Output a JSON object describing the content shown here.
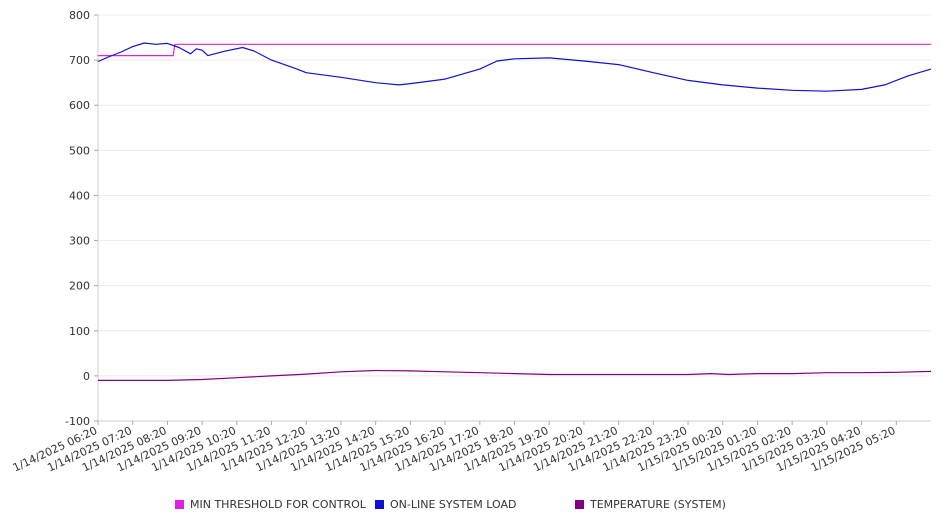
{
  "chart_data": {
    "type": "line",
    "title": "",
    "xlabel": "",
    "ylabel": "",
    "ylim": [
      -100,
      800
    ],
    "y_ticks": [
      "800",
      "700",
      "600",
      "500",
      "400",
      "300",
      "200",
      "100",
      "0",
      "-100"
    ],
    "x_start": "1/14/2025 06:20",
    "x_end": "1/15/2025 06:20",
    "x_ticks": [
      "1/14/2025 06:20",
      "1/14/2025 07:20",
      "1/14/2025 08:20",
      "1/14/2025 09:20",
      "1/14/2025 10:20",
      "1/14/2025 11:20",
      "1/14/2025 12:20",
      "1/14/2025 13:20",
      "1/14/2025 14:20",
      "1/14/2025 15:20",
      "1/14/2025 16:20",
      "1/14/2025 17:20",
      "1/14/2025 18:20",
      "1/14/2025 19:20",
      "1/14/2025 20:20",
      "1/14/2025 21:20",
      "1/14/2025 22:20",
      "1/14/2025 23:20",
      "1/15/2025 00:20",
      "1/15/2025 01:20",
      "1/15/2025 02:20",
      "1/15/2025 03:20",
      "1/15/2025 04:20",
      "1/15/2025 05:20"
    ],
    "grid": true,
    "legend_position": "bottom",
    "series": [
      {
        "name": "MIN THRESHOLD FOR CONTROL",
        "color": "#e020e0",
        "points": [
          {
            "x": "1/14/2025 06:20",
            "y": 710
          },
          {
            "x": "1/14/2025 08:30",
            "y": 710
          },
          {
            "x": "1/14/2025 08:33",
            "y": 735
          },
          {
            "x": "1/15/2025 06:20",
            "y": 735
          }
        ]
      },
      {
        "name": "ON-LINE SYSTEM LOAD",
        "color": "#1010d0",
        "points": [
          {
            "x": "1/14/2025 06:20",
            "y": 697
          },
          {
            "x": "1/14/2025 06:40",
            "y": 708
          },
          {
            "x": "1/14/2025 07:00",
            "y": 718
          },
          {
            "x": "1/14/2025 07:20",
            "y": 730
          },
          {
            "x": "1/14/2025 07:40",
            "y": 738
          },
          {
            "x": "1/14/2025 08:00",
            "y": 735
          },
          {
            "x": "1/14/2025 08:20",
            "y": 737
          },
          {
            "x": "1/14/2025 08:40",
            "y": 728
          },
          {
            "x": "1/14/2025 09:00",
            "y": 714
          },
          {
            "x": "1/14/2025 09:10",
            "y": 725
          },
          {
            "x": "1/14/2025 09:20",
            "y": 722
          },
          {
            "x": "1/14/2025 09:30",
            "y": 710
          },
          {
            "x": "1/14/2025 10:00",
            "y": 720
          },
          {
            "x": "1/14/2025 10:30",
            "y": 728
          },
          {
            "x": "1/14/2025 10:50",
            "y": 720
          },
          {
            "x": "1/14/2025 11:20",
            "y": 700
          },
          {
            "x": "1/14/2025 12:00",
            "y": 682
          },
          {
            "x": "1/14/2025 12:20",
            "y": 672
          },
          {
            "x": "1/14/2025 13:20",
            "y": 662
          },
          {
            "x": "1/14/2025 14:20",
            "y": 650
          },
          {
            "x": "1/14/2025 15:00",
            "y": 645
          },
          {
            "x": "1/14/2025 15:20",
            "y": 648
          },
          {
            "x": "1/14/2025 16:20",
            "y": 658
          },
          {
            "x": "1/14/2025 17:20",
            "y": 680
          },
          {
            "x": "1/14/2025 17:50",
            "y": 698
          },
          {
            "x": "1/14/2025 18:20",
            "y": 703
          },
          {
            "x": "1/14/2025 19:20",
            "y": 705
          },
          {
            "x": "1/14/2025 20:20",
            "y": 698
          },
          {
            "x": "1/14/2025 21:20",
            "y": 690
          },
          {
            "x": "1/14/2025 22:20",
            "y": 672
          },
          {
            "x": "1/14/2025 23:20",
            "y": 655
          },
          {
            "x": "1/15/2025 00:20",
            "y": 645
          },
          {
            "x": "1/15/2025 01:20",
            "y": 638
          },
          {
            "x": "1/15/2025 02:20",
            "y": 633
          },
          {
            "x": "1/15/2025 03:20",
            "y": 631
          },
          {
            "x": "1/15/2025 04:20",
            "y": 635
          },
          {
            "x": "1/15/2025 05:00",
            "y": 645
          },
          {
            "x": "1/15/2025 05:40",
            "y": 665
          },
          {
            "x": "1/15/2025 06:20",
            "y": 680
          }
        ]
      },
      {
        "name": "TEMPERATURE (SYSTEM)",
        "color": "#800080",
        "points": [
          {
            "x": "1/14/2025 06:20",
            "y": -10
          },
          {
            "x": "1/14/2025 08:20",
            "y": -10
          },
          {
            "x": "1/14/2025 09:20",
            "y": -8
          },
          {
            "x": "1/14/2025 10:20",
            "y": -4
          },
          {
            "x": "1/14/2025 11:20",
            "y": 0
          },
          {
            "x": "1/14/2025 12:20",
            "y": 4
          },
          {
            "x": "1/14/2025 13:20",
            "y": 9
          },
          {
            "x": "1/14/2025 14:20",
            "y": 12
          },
          {
            "x": "1/14/2025 15:20",
            "y": 11
          },
          {
            "x": "1/14/2025 16:20",
            "y": 9
          },
          {
            "x": "1/14/2025 17:20",
            "y": 7
          },
          {
            "x": "1/14/2025 18:20",
            "y": 5
          },
          {
            "x": "1/14/2025 19:20",
            "y": 3
          },
          {
            "x": "1/14/2025 20:20",
            "y": 3
          },
          {
            "x": "1/14/2025 21:20",
            "y": 3
          },
          {
            "x": "1/14/2025 22:20",
            "y": 3
          },
          {
            "x": "1/14/2025 23:20",
            "y": 3
          },
          {
            "x": "1/15/2025 00:00",
            "y": 5
          },
          {
            "x": "1/15/2025 00:30",
            "y": 3
          },
          {
            "x": "1/15/2025 01:20",
            "y": 5
          },
          {
            "x": "1/15/2025 02:20",
            "y": 5
          },
          {
            "x": "1/15/2025 03:20",
            "y": 7
          },
          {
            "x": "1/15/2025 04:20",
            "y": 7
          },
          {
            "x": "1/15/2025 05:20",
            "y": 8
          },
          {
            "x": "1/15/2025 06:20",
            "y": 10
          }
        ]
      }
    ]
  }
}
